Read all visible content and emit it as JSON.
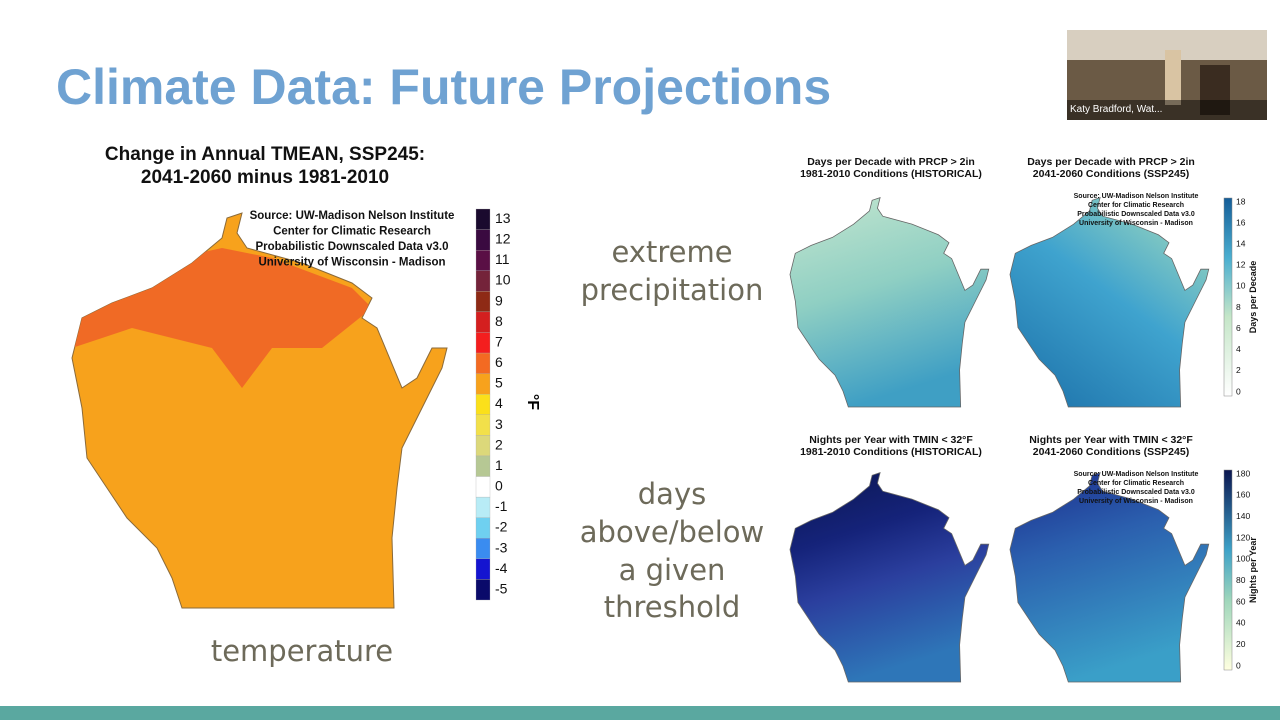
{
  "slide": {
    "title": "Climate Data: Future Projections"
  },
  "video": {
    "participant": "Katy Bradford, Wat..."
  },
  "temperature_map": {
    "title_lines": [
      "Change in Annual TMEAN, SSP245:",
      "2041-2060 minus 1981-2010"
    ],
    "source_lines": [
      "Source: UW-Madison Nelson Institute",
      "Center for Climatic Research",
      "Probabilistic Downscaled Data v3.0",
      "University of Wisconsin - Madison"
    ],
    "colorbar": {
      "labels": [
        13,
        12,
        11,
        10,
        9,
        8,
        7,
        6,
        5,
        4,
        3,
        2,
        1,
        0,
        -1,
        -2,
        -3,
        -4,
        -5
      ],
      "unit": "°F"
    },
    "caption": "temperature"
  },
  "row_labels": [
    {
      "lines": [
        "extreme",
        "precipitation"
      ]
    },
    {
      "lines": [
        "days",
        "above/below",
        "a given",
        "threshold"
      ]
    }
  ],
  "panels": [
    {
      "title_lines": [
        "Days per Decade with PRCP > 2in",
        "1981-2010 Conditions (HISTORICAL)"
      ]
    },
    {
      "title_lines": [
        "Days per Decade with PRCP > 2in",
        "2041-2060 Conditions (SSP245)"
      ],
      "source_lines": [
        "Source: UW-Madison Nelson Institute",
        "Center for Climatic Research",
        "Probabilistic Downscaled Data v3.0",
        "University of Wisconsin - Madison"
      ]
    },
    {
      "title_lines": [
        "Nights per Year with TMIN < 32°F",
        "1981-2010 Conditions (HISTORICAL)"
      ]
    },
    {
      "title_lines": [
        "Nights per Year with TMIN < 32°F",
        "2041-2060 Conditions (SSP245)"
      ],
      "source_lines": [
        "Source: UW-Madison Nelson Institute",
        "Center for Climatic Research",
        "Probabilistic Downscaled Data v3.0",
        "University of Wisconsin - Madison"
      ]
    }
  ],
  "colorbars": [
    {
      "ticks": [
        18,
        16,
        14,
        12,
        10,
        8,
        6,
        4,
        2,
        0
      ],
      "label": "Days per Decade"
    },
    {
      "ticks": [
        180,
        160,
        140,
        120,
        100,
        80,
        60,
        40,
        20,
        0
      ],
      "label": "Nights per Year"
    }
  ]
}
